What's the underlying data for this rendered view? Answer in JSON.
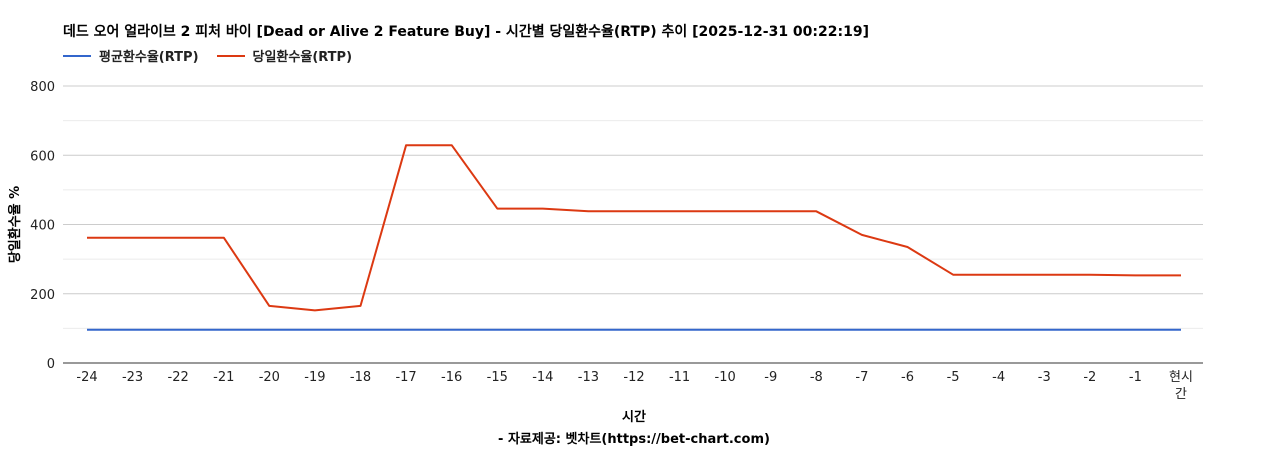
{
  "chart_data": {
    "type": "line",
    "title": "데드 오어 얼라이브 2 피처 바이 [Dead or Alive 2 Feature Buy] - 시간별 당일환수율(RTP) 추이 [2025-12-31 00:22:19]",
    "xlabel": "시간",
    "ylabel": "당일환수율 %",
    "source": "- 자료제공: 벳차트(https://bet-chart.com)",
    "categories": [
      "-24",
      "-23",
      "-22",
      "-21",
      "-20",
      "-19",
      "-18",
      "-17",
      "-16",
      "-15",
      "-14",
      "-13",
      "-12",
      "-11",
      "-10",
      "-9",
      "-8",
      "-7",
      "-6",
      "-5",
      "-4",
      "-3",
      "-2",
      "-1",
      "현시간"
    ],
    "ylim": [
      0,
      800
    ],
    "yticks": [
      0,
      200,
      400,
      600,
      800
    ],
    "grid": true,
    "legend_position": "top-left",
    "series": [
      {
        "name": "평균환수율(RTP)",
        "color": "#3366cc",
        "values": [
          96,
          96,
          96,
          96,
          96,
          96,
          96,
          96,
          96,
          96,
          96,
          96,
          96,
          96,
          96,
          96,
          96,
          96,
          96,
          96,
          96,
          96,
          96,
          96,
          96
        ]
      },
      {
        "name": "당일환수율(RTP)",
        "color": "#dc3912",
        "values": [
          362,
          362,
          362,
          362,
          165,
          152,
          165,
          629,
          629,
          446,
          446,
          438,
          438,
          438,
          438,
          438,
          438,
          370,
          335,
          255,
          255,
          255,
          255,
          253,
          253
        ]
      }
    ]
  }
}
